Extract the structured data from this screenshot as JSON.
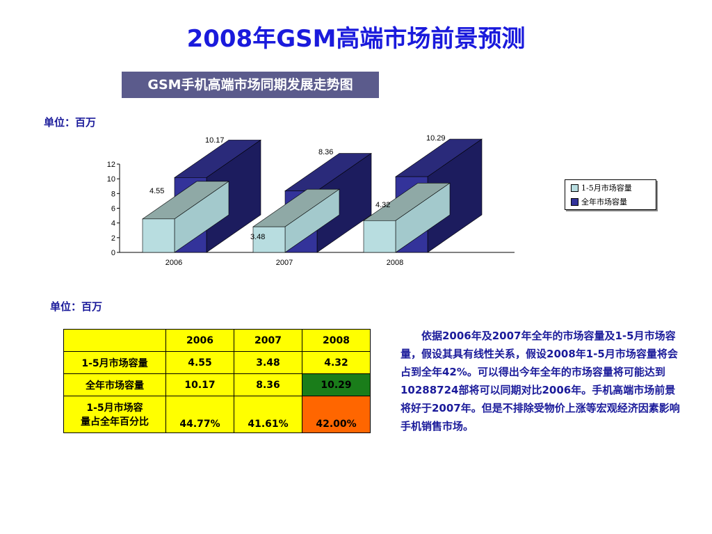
{
  "page": {
    "title": "2008年GSM高端市场前景预测",
    "subtitle": "GSM手机高端市场同期发展走势图",
    "unit_label_1": "单位：百万",
    "unit_label_2": "单位：百万"
  },
  "chart_data": {
    "type": "bar",
    "categories": [
      "2006",
      "2007",
      "2008"
    ],
    "series": [
      {
        "name": "1-5月市场容量",
        "values": [
          4.55,
          3.48,
          4.32
        ]
      },
      {
        "name": "全年市场容量",
        "values": [
          10.17,
          8.36,
          10.29
        ]
      }
    ],
    "ylim": [
      0,
      12
    ],
    "yticks": [
      "0",
      "2",
      "4",
      "6",
      "8",
      "10",
      "12"
    ],
    "data_labels": [
      [
        "4.55",
        "3.48",
        "4.32"
      ],
      [
        "10.17",
        "8.36",
        "10.29"
      ]
    ],
    "legend_position": "right",
    "grid": false
  },
  "legend": {
    "item1": "1-5月市场容量",
    "item2": "全年市场容量"
  },
  "colors": {
    "series1_front": "#b8dde0",
    "series1_side": "#a3c9cc",
    "series1_top": "#8fa9a6",
    "series2_front": "#33339a",
    "series2_side": "#1c1c5e",
    "series2_top": "#2a2a7a",
    "title": "#1a1adc",
    "table_fill": "#ffff00",
    "highlight_green": "#1a7d1a",
    "highlight_orange": "#ff6600"
  },
  "table": {
    "headers": [
      "",
      "2006",
      "2007",
      "2008"
    ],
    "rows": [
      {
        "label": "1-5月市场容量",
        "values": [
          "4.55",
          "3.48",
          "4.32"
        ]
      },
      {
        "label": "全年市场容量",
        "values": [
          "10.17",
          "8.36",
          "10.29"
        ]
      },
      {
        "label_line1": "1-5月市场容",
        "label_line2": "量占全年百分比",
        "values": [
          "44.77%",
          "41.61%",
          "42.00%"
        ]
      }
    ]
  },
  "paragraph": "依据2006年及2007年全年的市场容量及1-5月市场容量，假设其具有线性关系，假设2008年1-5月市场容量将会占到全年42%。可以得出今年全年的市场容量将可能达到10288724部将可以同期对比2006年。手机高端市场前景将好于2007年。但是不排除受物价上涨等宏观经济因素影响手机销售市场。"
}
